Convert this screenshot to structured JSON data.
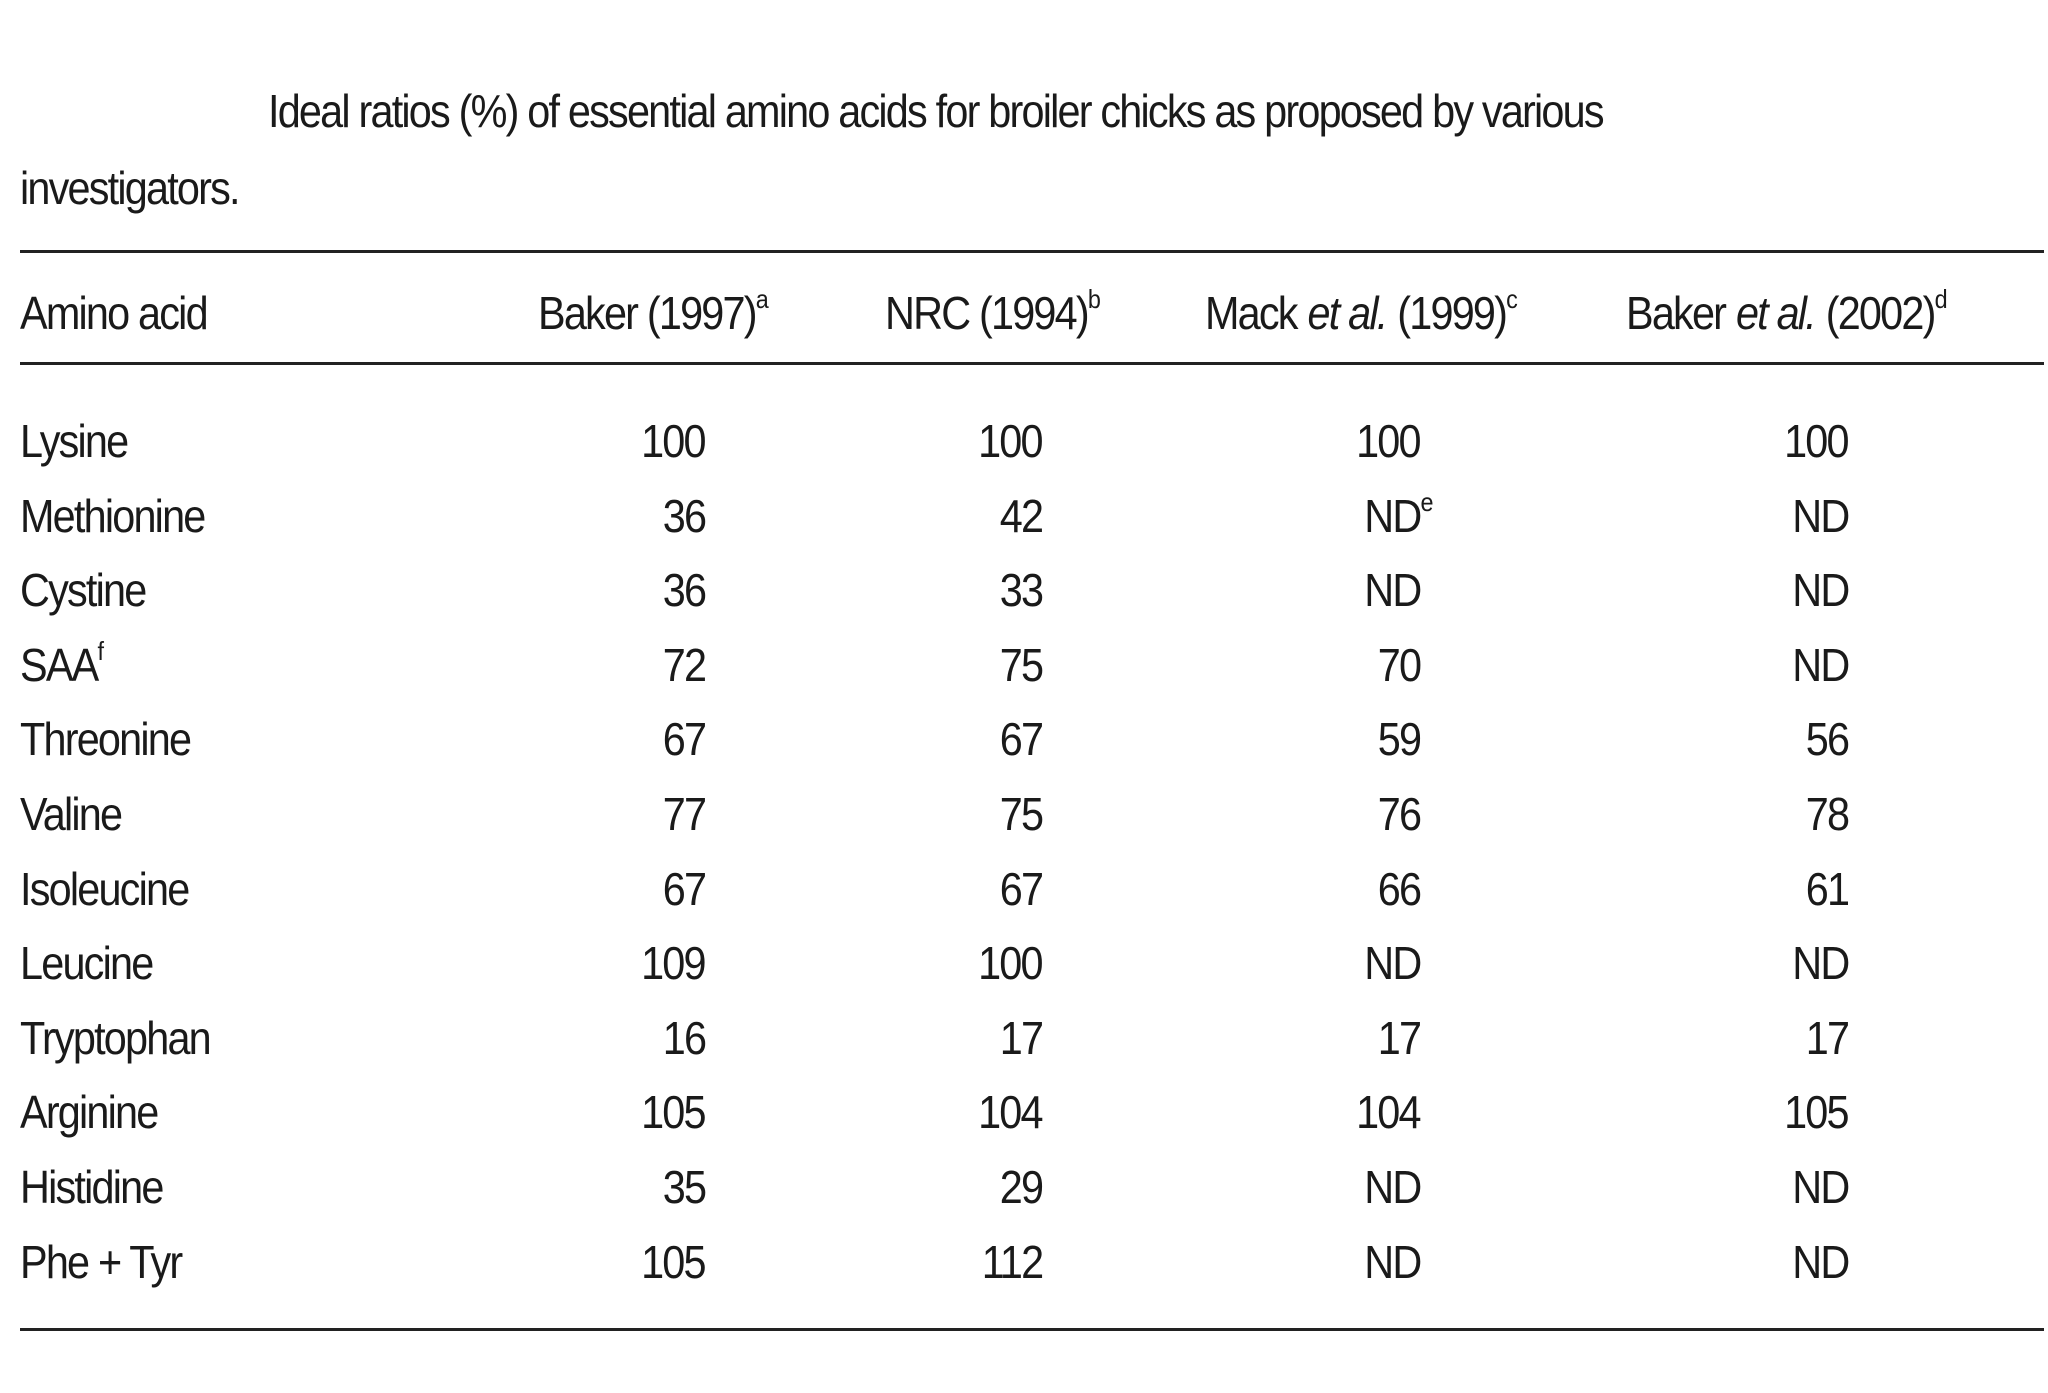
{
  "caption": {
    "text": "Ideal ratios (%) of essential amino acids for broiler chicks as proposed by various",
    "text2": "investigators."
  },
  "table": {
    "header": [
      {
        "text": "Amino acid"
      },
      {
        "text": "Baker (1997)",
        "note": "a"
      },
      {
        "text": "NRC (1994)",
        "note": "b"
      },
      {
        "text": "Mack",
        "italic": "et al.",
        "after": "(1999)",
        "note": "c"
      },
      {
        "text": "Baker",
        "italic": "et al.",
        "after": "(2002)",
        "note": "d"
      }
    ],
    "rows": [
      {
        "label": "Lysine",
        "cells": [
          {
            "text": "100"
          },
          {
            "text": "100"
          },
          {
            "text": "100"
          },
          {
            "text": "100"
          }
        ]
      },
      {
        "label": "Methionine",
        "cells": [
          {
            "text": "36"
          },
          {
            "text": "42"
          },
          {
            "text": "ND",
            "note": "e"
          },
          {
            "text": "ND"
          }
        ]
      },
      {
        "label": "Cystine",
        "cells": [
          {
            "text": "36"
          },
          {
            "text": "33"
          },
          {
            "text": "ND"
          },
          {
            "text": "ND"
          }
        ]
      },
      {
        "label": "SAA",
        "note": "f",
        "cells": [
          {
            "text": "72"
          },
          {
            "text": "75"
          },
          {
            "text": "70"
          },
          {
            "text": "ND"
          }
        ]
      },
      {
        "label": "Threonine",
        "cells": [
          {
            "text": "67"
          },
          {
            "text": "67"
          },
          {
            "text": "59"
          },
          {
            "text": "56"
          }
        ]
      },
      {
        "label": "Valine",
        "cells": [
          {
            "text": "77"
          },
          {
            "text": "75"
          },
          {
            "text": "76"
          },
          {
            "text": "78"
          }
        ]
      },
      {
        "label": "Isoleucine",
        "cells": [
          {
            "text": "67"
          },
          {
            "text": "67"
          },
          {
            "text": "66"
          },
          {
            "text": "61"
          }
        ]
      },
      {
        "label": "Leucine",
        "cells": [
          {
            "text": "109"
          },
          {
            "text": "100"
          },
          {
            "text": "ND"
          },
          {
            "text": "ND"
          }
        ]
      },
      {
        "label": "Tryptophan",
        "cells": [
          {
            "text": "16"
          },
          {
            "text": "17"
          },
          {
            "text": "17"
          },
          {
            "text": "17"
          }
        ]
      },
      {
        "label": "Arginine",
        "cells": [
          {
            "text": "105"
          },
          {
            "text": "104"
          },
          {
            "text": "104"
          },
          {
            "text": "105"
          }
        ]
      },
      {
        "label": "Histidine",
        "cells": [
          {
            "text": "35"
          },
          {
            "text": "29"
          },
          {
            "text": "ND"
          },
          {
            "text": "ND"
          }
        ]
      },
      {
        "label": "Phe + Tyr",
        "cells": [
          {
            "text": "105"
          },
          {
            "text": "112"
          },
          {
            "text": "ND"
          },
          {
            "text": "ND"
          }
        ]
      }
    ]
  }
}
